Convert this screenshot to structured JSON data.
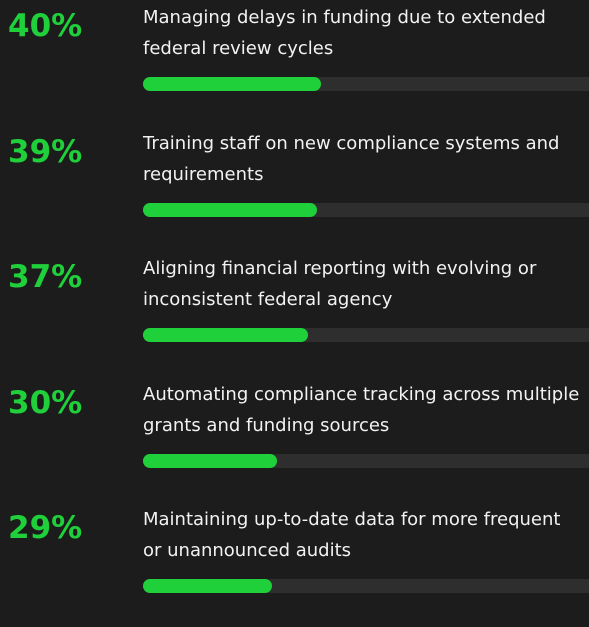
{
  "chart_data": {
    "type": "bar",
    "categories": [
      "Managing delays in funding due to extended federal review cycles",
      "Training staff on new compliance systems and requirements",
      "Aligning financial reporting with evolving or inconsistent federal agency",
      "Automating compliance tracking across multiple grants and funding sources",
      "Maintaining up-to-date data for more frequent or unannounced audits"
    ],
    "values": [
      40,
      39,
      37,
      30,
      29
    ],
    "value_labels": [
      "40%",
      "39%",
      "37%",
      "30%",
      "29%"
    ],
    "xlim": [
      0,
      100
    ],
    "color": "#1fd03a",
    "track_color": "#2e2e2e"
  }
}
